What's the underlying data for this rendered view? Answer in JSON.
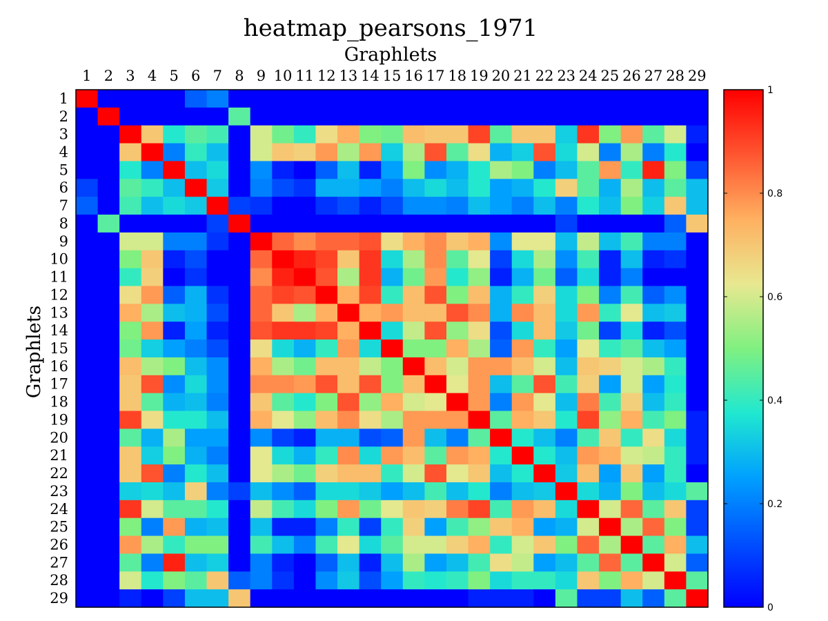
{
  "chart_data": {
    "type": "heatmap",
    "title": "heatmap_pearsons_1971",
    "xlabel": "Graphlets",
    "ylabel": "Graphlets",
    "categories": [
      "1",
      "2",
      "3",
      "4",
      "5",
      "6",
      "7",
      "8",
      "9",
      "10",
      "11",
      "12",
      "13",
      "14",
      "15",
      "16",
      "17",
      "18",
      "19",
      "20",
      "21",
      "22",
      "23",
      "24",
      "25",
      "26",
      "27",
      "28",
      "29"
    ],
    "color_range": [
      0,
      1
    ],
    "colormap": "jet",
    "colorbar_ticks": [
      "0",
      "0.2",
      "0.4",
      "0.6",
      "0.8",
      "1"
    ],
    "colors": {
      "axis": "#000000",
      "background": "#ffffff"
    },
    "matrix": [
      [
        1.0,
        0.0,
        0.0,
        0.0,
        0.0,
        0.15,
        0.2,
        0.0,
        0.0,
        0.0,
        0.0,
        0.0,
        0.0,
        0.0,
        0.0,
        0.0,
        0.0,
        0.0,
        0.0,
        0.0,
        0.0,
        0.0,
        0.0,
        0.0,
        0.0,
        0.0,
        0.0,
        0.0,
        0.0
      ],
      [
        0.0,
        1.0,
        0.0,
        0.0,
        0.0,
        0.0,
        0.0,
        0.45,
        0.0,
        0.0,
        0.0,
        0.0,
        0.0,
        0.0,
        0.0,
        0.0,
        0.0,
        0.0,
        0.0,
        0.0,
        0.0,
        0.0,
        0.0,
        0.0,
        0.0,
        0.0,
        0.0,
        0.0,
        0.0
      ],
      [
        0.0,
        0.0,
        1.0,
        0.7,
        0.38,
        0.45,
        0.42,
        0.0,
        0.6,
        0.48,
        0.4,
        0.65,
        0.75,
        0.5,
        0.48,
        0.72,
        0.7,
        0.7,
        0.9,
        0.45,
        0.7,
        0.7,
        0.33,
        0.92,
        0.5,
        0.78,
        0.45,
        0.6,
        0.05
      ],
      [
        0.0,
        0.0,
        0.7,
        1.0,
        0.2,
        0.4,
        0.3,
        0.0,
        0.6,
        0.7,
        0.68,
        0.78,
        0.55,
        0.78,
        0.33,
        0.55,
        0.88,
        0.45,
        0.65,
        0.28,
        0.33,
        0.88,
        0.35,
        0.6,
        0.2,
        0.55,
        0.2,
        0.38,
        0.0
      ],
      [
        0.0,
        0.0,
        0.38,
        0.2,
        1.0,
        0.3,
        0.35,
        0.0,
        0.22,
        0.05,
        0.0,
        0.15,
        0.3,
        0.05,
        0.25,
        0.5,
        0.22,
        0.28,
        0.38,
        0.55,
        0.5,
        0.2,
        0.3,
        0.45,
        0.78,
        0.4,
        0.95,
        0.5,
        0.1
      ],
      [
        0.1,
        0.0,
        0.45,
        0.4,
        0.3,
        1.0,
        0.32,
        0.0,
        0.2,
        0.12,
        0.08,
        0.28,
        0.28,
        0.25,
        0.2,
        0.3,
        0.35,
        0.3,
        0.38,
        0.25,
        0.28,
        0.38,
        0.68,
        0.45,
        0.28,
        0.55,
        0.3,
        0.45,
        0.3
      ],
      [
        0.15,
        0.0,
        0.42,
        0.3,
        0.35,
        0.32,
        1.0,
        0.1,
        0.08,
        0.0,
        0.0,
        0.08,
        0.12,
        0.05,
        0.12,
        0.22,
        0.22,
        0.2,
        0.3,
        0.25,
        0.2,
        0.3,
        0.2,
        0.38,
        0.3,
        0.5,
        0.33,
        0.7,
        0.3
      ],
      [
        0.0,
        0.45,
        0.0,
        0.0,
        0.0,
        0.0,
        0.1,
        1.0,
        0.0,
        0.0,
        0.0,
        0.0,
        0.0,
        0.0,
        0.0,
        0.0,
        0.0,
        0.0,
        0.0,
        0.0,
        0.0,
        0.0,
        0.1,
        0.0,
        0.0,
        0.0,
        0.0,
        0.15,
        0.7
      ],
      [
        0.0,
        0.0,
        0.6,
        0.6,
        0.2,
        0.2,
        0.08,
        0.0,
        1.0,
        0.85,
        0.8,
        0.85,
        0.85,
        0.88,
        0.65,
        0.75,
        0.8,
        0.7,
        0.75,
        0.22,
        0.62,
        0.62,
        0.3,
        0.58,
        0.3,
        0.42,
        0.2,
        0.2,
        0.0
      ],
      [
        0.0,
        0.0,
        0.5,
        0.7,
        0.05,
        0.12,
        0.0,
        0.0,
        0.85,
        1.0,
        0.95,
        0.9,
        0.7,
        0.92,
        0.35,
        0.55,
        0.8,
        0.45,
        0.62,
        0.1,
        0.35,
        0.55,
        0.22,
        0.42,
        0.05,
        0.3,
        0.05,
        0.08,
        0.0
      ],
      [
        0.0,
        0.0,
        0.4,
        0.68,
        0.0,
        0.08,
        0.0,
        0.0,
        0.8,
        0.95,
        1.0,
        0.88,
        0.55,
        0.92,
        0.28,
        0.48,
        0.78,
        0.38,
        0.52,
        0.05,
        0.28,
        0.48,
        0.15,
        0.35,
        0.05,
        0.2,
        0.0,
        0.0,
        0.0
      ],
      [
        0.0,
        0.0,
        0.65,
        0.78,
        0.15,
        0.28,
        0.08,
        0.0,
        0.85,
        0.9,
        0.88,
        1.0,
        0.75,
        0.9,
        0.4,
        0.72,
        0.88,
        0.5,
        0.72,
        0.28,
        0.4,
        0.68,
        0.35,
        0.5,
        0.2,
        0.42,
        0.15,
        0.22,
        0.0
      ],
      [
        0.0,
        0.0,
        0.75,
        0.55,
        0.3,
        0.28,
        0.12,
        0.0,
        0.85,
        0.7,
        0.55,
        0.75,
        1.0,
        0.75,
        0.78,
        0.72,
        0.72,
        0.88,
        0.8,
        0.28,
        0.8,
        0.72,
        0.35,
        0.78,
        0.4,
        0.62,
        0.3,
        0.32,
        0.0
      ],
      [
        0.0,
        0.0,
        0.5,
        0.78,
        0.05,
        0.25,
        0.05,
        0.0,
        0.88,
        0.92,
        0.92,
        0.9,
        0.75,
        1.0,
        0.35,
        0.58,
        0.88,
        0.52,
        0.65,
        0.12,
        0.35,
        0.72,
        0.32,
        0.48,
        0.1,
        0.35,
        0.05,
        0.12,
        0.0
      ],
      [
        0.0,
        0.0,
        0.48,
        0.33,
        0.25,
        0.2,
        0.12,
        0.0,
        0.65,
        0.35,
        0.28,
        0.4,
        0.78,
        0.35,
        1.0,
        0.5,
        0.5,
        0.75,
        0.55,
        0.15,
        0.78,
        0.4,
        0.25,
        0.62,
        0.4,
        0.45,
        0.3,
        0.25,
        0.0
      ],
      [
        0.0,
        0.0,
        0.72,
        0.55,
        0.5,
        0.3,
        0.22,
        0.0,
        0.75,
        0.55,
        0.48,
        0.72,
        0.72,
        0.58,
        0.5,
        1.0,
        0.72,
        0.6,
        0.78,
        0.78,
        0.72,
        0.6,
        0.3,
        0.7,
        0.68,
        0.6,
        0.55,
        0.4,
        0.0
      ],
      [
        0.0,
        0.0,
        0.7,
        0.88,
        0.22,
        0.35,
        0.22,
        0.0,
        0.8,
        0.8,
        0.78,
        0.88,
        0.72,
        0.88,
        0.5,
        0.72,
        1.0,
        0.62,
        0.78,
        0.3,
        0.45,
        0.88,
        0.42,
        0.68,
        0.25,
        0.6,
        0.25,
        0.38,
        0.0
      ],
      [
        0.0,
        0.0,
        0.7,
        0.45,
        0.28,
        0.3,
        0.2,
        0.0,
        0.7,
        0.45,
        0.38,
        0.5,
        0.88,
        0.52,
        0.75,
        0.6,
        0.62,
        1.0,
        0.78,
        0.2,
        0.78,
        0.62,
        0.3,
        0.82,
        0.42,
        0.68,
        0.3,
        0.4,
        0.0
      ],
      [
        0.0,
        0.0,
        0.9,
        0.65,
        0.38,
        0.38,
        0.3,
        0.0,
        0.75,
        0.62,
        0.52,
        0.72,
        0.8,
        0.65,
        0.55,
        0.78,
        0.78,
        0.78,
        1.0,
        0.45,
        0.75,
        0.7,
        0.38,
        0.9,
        0.52,
        0.75,
        0.42,
        0.5,
        0.05
      ],
      [
        0.0,
        0.0,
        0.45,
        0.28,
        0.55,
        0.25,
        0.25,
        0.0,
        0.22,
        0.1,
        0.05,
        0.28,
        0.28,
        0.12,
        0.15,
        0.78,
        0.3,
        0.2,
        0.45,
        1.0,
        0.38,
        0.3,
        0.2,
        0.42,
        0.7,
        0.4,
        0.65,
        0.35,
        0.05
      ],
      [
        0.0,
        0.0,
        0.7,
        0.33,
        0.5,
        0.28,
        0.2,
        0.0,
        0.62,
        0.35,
        0.28,
        0.4,
        0.8,
        0.35,
        0.78,
        0.72,
        0.45,
        0.78,
        0.75,
        0.38,
        1.0,
        0.38,
        0.3,
        0.78,
        0.75,
        0.6,
        0.58,
        0.4,
        0.05
      ],
      [
        0.0,
        0.0,
        0.7,
        0.88,
        0.2,
        0.38,
        0.3,
        0.0,
        0.62,
        0.55,
        0.48,
        0.68,
        0.72,
        0.72,
        0.4,
        0.6,
        0.88,
        0.62,
        0.7,
        0.3,
        0.38,
        1.0,
        0.32,
        0.72,
        0.25,
        0.7,
        0.25,
        0.4,
        0.0
      ],
      [
        0.0,
        0.0,
        0.33,
        0.35,
        0.3,
        0.68,
        0.2,
        0.1,
        0.3,
        0.22,
        0.15,
        0.35,
        0.35,
        0.32,
        0.25,
        0.3,
        0.42,
        0.3,
        0.38,
        0.2,
        0.3,
        0.32,
        1.0,
        0.35,
        0.28,
        0.5,
        0.3,
        0.35,
        0.45
      ],
      [
        0.0,
        0.0,
        0.92,
        0.6,
        0.45,
        0.45,
        0.38,
        0.0,
        0.58,
        0.42,
        0.35,
        0.5,
        0.78,
        0.48,
        0.62,
        0.7,
        0.68,
        0.82,
        0.9,
        0.42,
        0.78,
        0.72,
        0.35,
        1.0,
        0.6,
        0.85,
        0.45,
        0.7,
        0.1
      ],
      [
        0.0,
        0.0,
        0.5,
        0.2,
        0.78,
        0.28,
        0.3,
        0.0,
        0.3,
        0.05,
        0.05,
        0.2,
        0.4,
        0.1,
        0.4,
        0.68,
        0.25,
        0.42,
        0.52,
        0.7,
        0.75,
        0.25,
        0.28,
        0.6,
        1.0,
        0.55,
        0.85,
        0.5,
        0.1
      ],
      [
        0.0,
        0.0,
        0.78,
        0.55,
        0.4,
        0.5,
        0.5,
        0.0,
        0.42,
        0.3,
        0.2,
        0.42,
        0.62,
        0.35,
        0.45,
        0.6,
        0.6,
        0.68,
        0.75,
        0.4,
        0.6,
        0.7,
        0.5,
        0.85,
        0.55,
        1.0,
        0.45,
        0.75,
        0.3
      ],
      [
        0.0,
        0.0,
        0.45,
        0.2,
        0.95,
        0.3,
        0.33,
        0.0,
        0.2,
        0.05,
        0.0,
        0.15,
        0.3,
        0.05,
        0.3,
        0.55,
        0.25,
        0.3,
        0.42,
        0.65,
        0.58,
        0.25,
        0.3,
        0.45,
        0.85,
        0.45,
        1.0,
        0.6,
        0.15
      ],
      [
        0.0,
        0.0,
        0.6,
        0.38,
        0.5,
        0.45,
        0.7,
        0.15,
        0.2,
        0.08,
        0.0,
        0.22,
        0.32,
        0.12,
        0.25,
        0.4,
        0.38,
        0.4,
        0.5,
        0.35,
        0.4,
        0.4,
        0.35,
        0.7,
        0.5,
        0.75,
        0.6,
        1.0,
        0.45
      ],
      [
        0.0,
        0.0,
        0.05,
        0.0,
        0.1,
        0.3,
        0.3,
        0.7,
        0.0,
        0.0,
        0.0,
        0.0,
        0.0,
        0.0,
        0.0,
        0.0,
        0.0,
        0.0,
        0.05,
        0.05,
        0.05,
        0.0,
        0.45,
        0.1,
        0.1,
        0.3,
        0.15,
        0.45,
        1.0
      ]
    ]
  }
}
